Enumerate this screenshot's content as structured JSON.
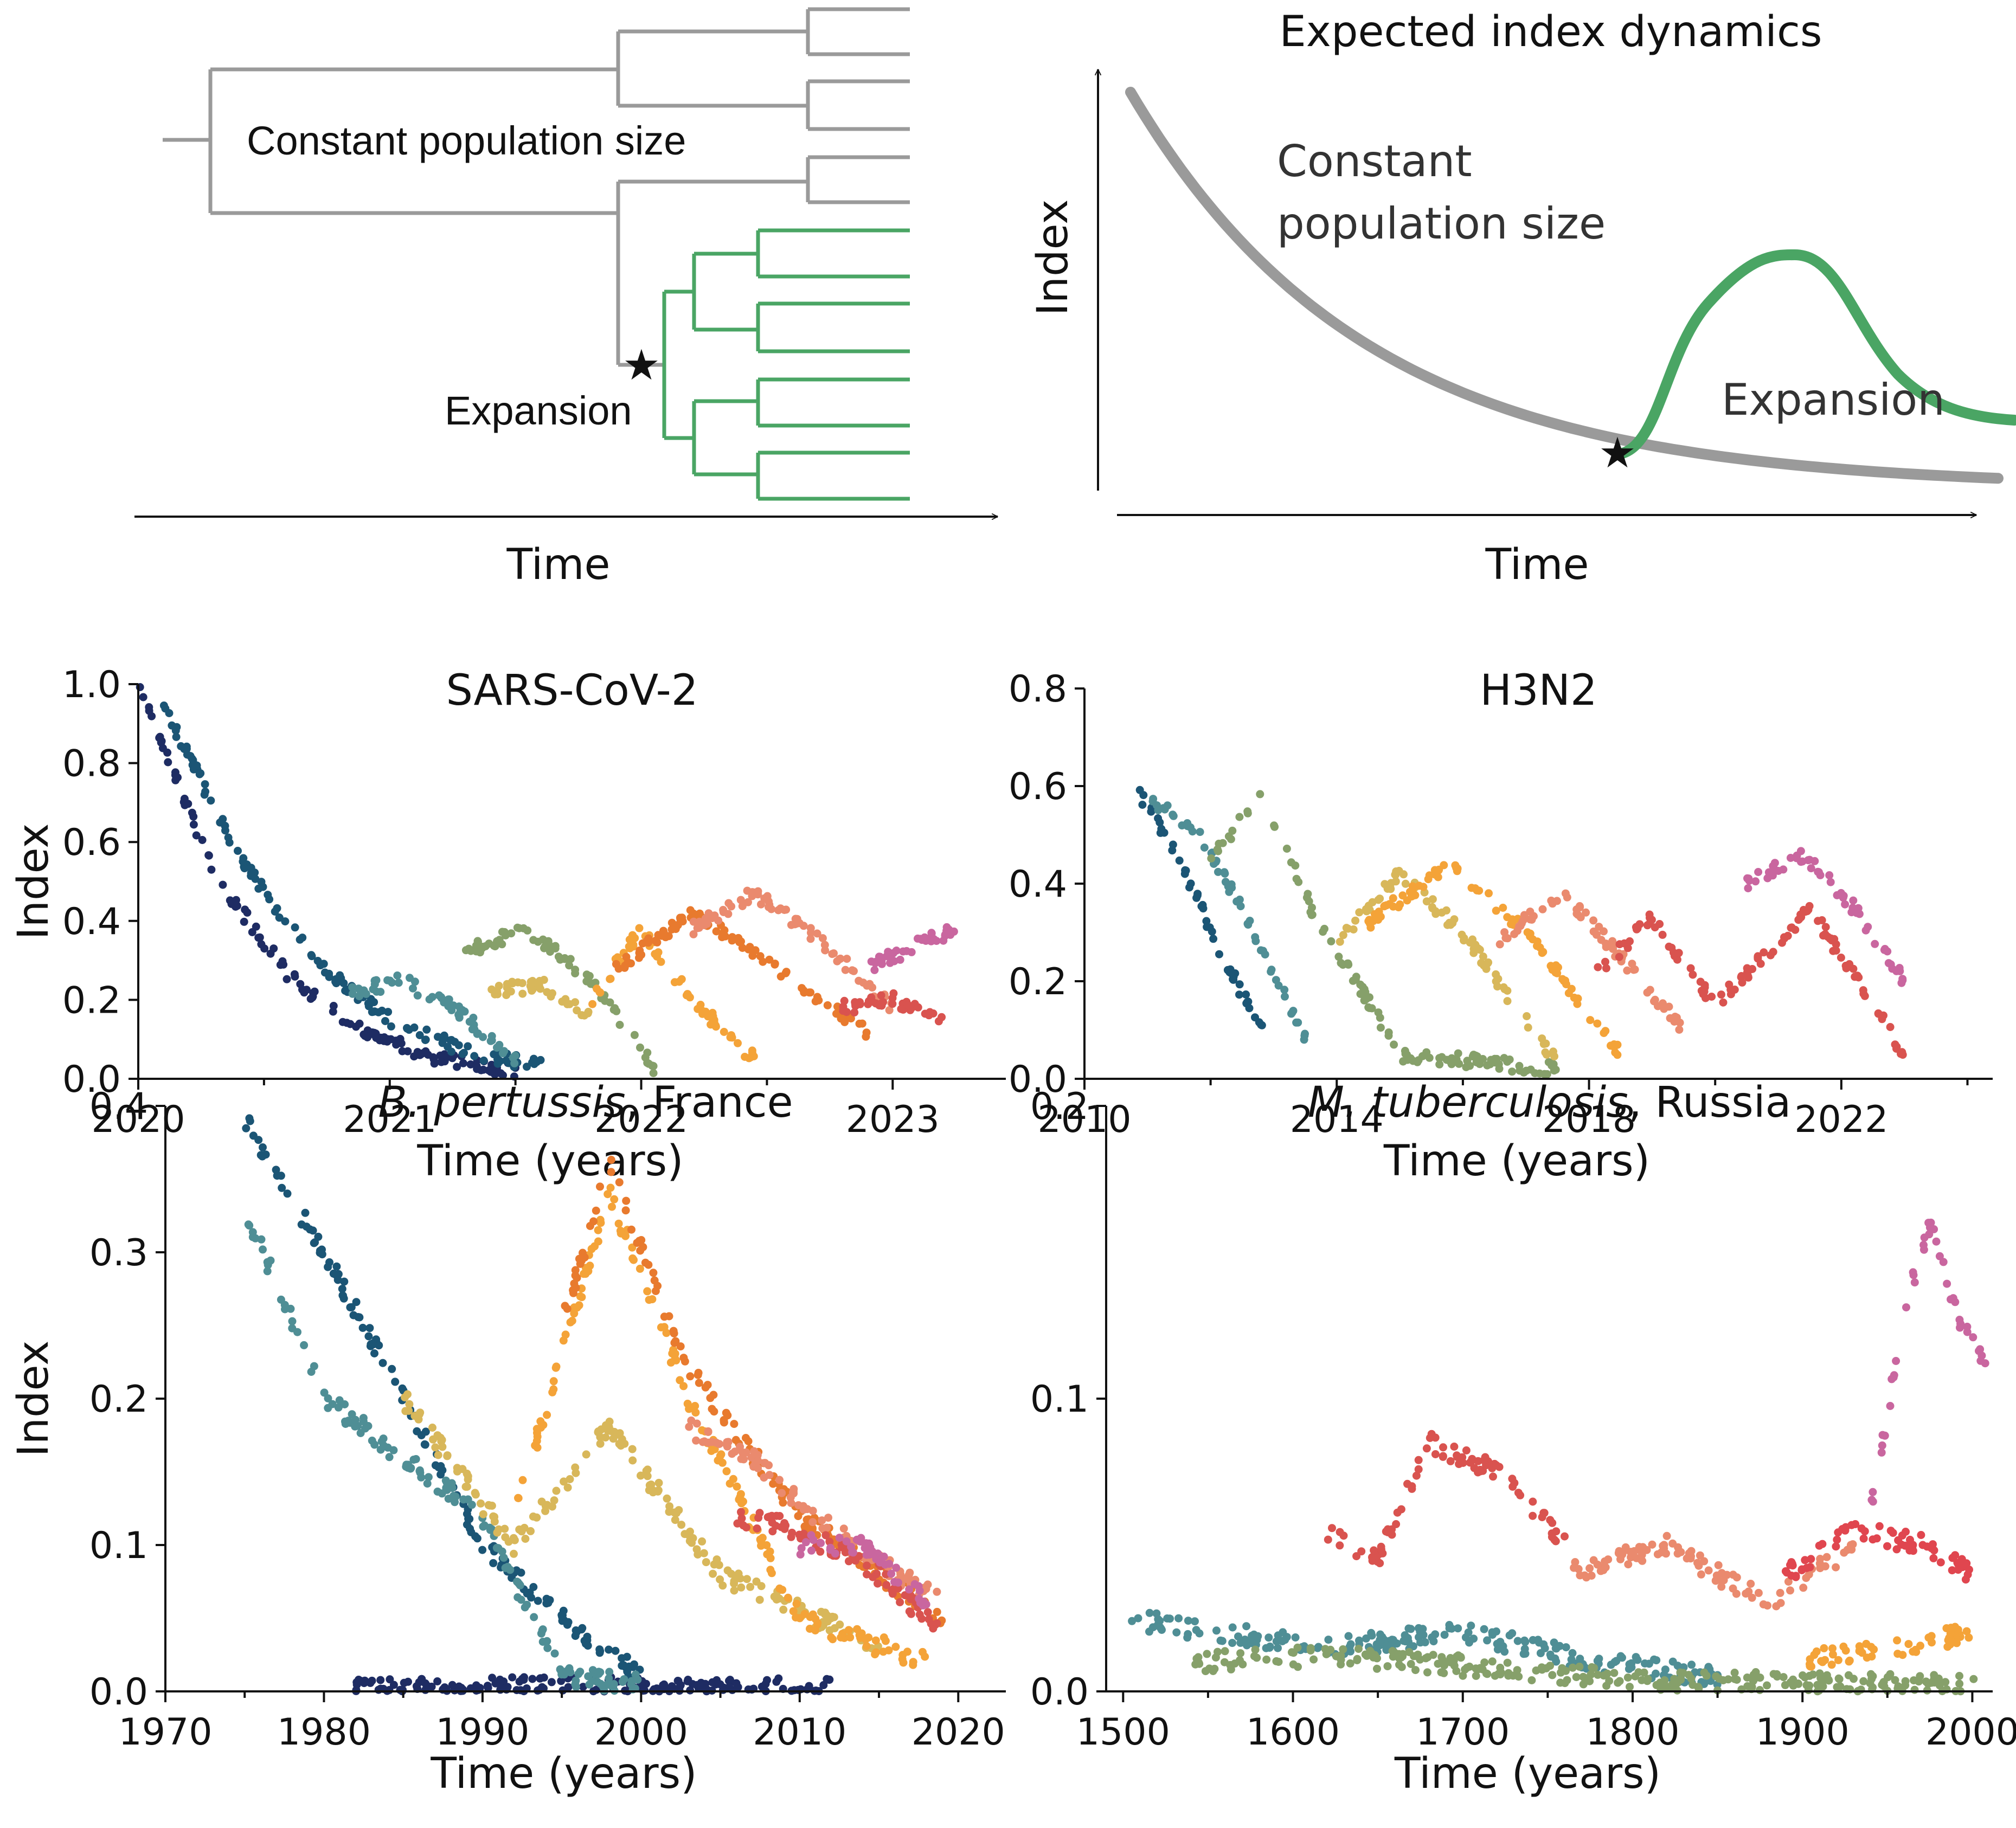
{
  "schematic_tree": {
    "label_constant": "Constant population size",
    "label_expansion": "Expansion",
    "xlabel": "Time",
    "colors": {
      "background_lineage": "#9a9a9a",
      "expansion_lineage": "#4aa564"
    }
  },
  "schematic_dynamics": {
    "title": "Expected index dynamics",
    "ylabel": "Index",
    "xlabel": "Time",
    "label_constant": "Constant population size",
    "label_constant_line1": "Constant",
    "label_constant_line2": "population size",
    "label_expansion": "Expansion",
    "colors": {
      "background_curve": "#9a9a9a",
      "expansion_curve": "#4aa564"
    }
  },
  "chart_data": [
    {
      "type": "scatter",
      "title": "SARS-CoV-2",
      "xlabel": "Time (years)",
      "ylabel": "Index",
      "xlim": [
        2020.0,
        2023.45
      ],
      "ylim": [
        0.0,
        1.0
      ],
      "xticks": [
        2020,
        2021,
        2022,
        2023
      ],
      "yticks": [
        0.0,
        0.2,
        0.4,
        0.6,
        0.8,
        1.0
      ],
      "ytick_labels": [
        "0.0",
        "0.2",
        "0.4",
        "0.6",
        "0.8",
        "1.0"
      ],
      "series": [
        {
          "color": "#1e2c63",
          "x": [
            2020.0,
            2020.3,
            2020.6,
            2020.9,
            2021.2,
            2021.5
          ],
          "y": [
            1.0,
            0.52,
            0.26,
            0.12,
            0.05,
            0.02
          ]
        },
        {
          "color": "#1b5575",
          "x": [
            2020.1,
            2020.4,
            2020.7,
            2021.0,
            2021.3,
            2021.6
          ],
          "y": [
            0.95,
            0.56,
            0.3,
            0.15,
            0.07,
            0.03
          ]
        },
        {
          "color": "#4f8e95",
          "x": [
            2020.85,
            2021.05,
            2021.25,
            2021.5
          ],
          "y": [
            0.22,
            0.25,
            0.18,
            0.05
          ]
        },
        {
          "color": "#86a06a",
          "x": [
            2021.3,
            2021.55,
            2021.8,
            2022.05
          ],
          "y": [
            0.32,
            0.38,
            0.25,
            0.03
          ]
        },
        {
          "color": "#d8b75a",
          "x": [
            2021.4,
            2021.6,
            2021.8
          ],
          "y": [
            0.22,
            0.24,
            0.15
          ]
        },
        {
          "color": "#f4a338",
          "x": [
            2021.8,
            2022.0,
            2022.2,
            2022.45
          ],
          "y": [
            0.2,
            0.38,
            0.2,
            0.05
          ]
        },
        {
          "color": "#e87a2e",
          "x": [
            2021.9,
            2022.2,
            2022.5,
            2022.9
          ],
          "y": [
            0.28,
            0.42,
            0.3,
            0.12
          ]
        },
        {
          "color": "#ea8a6e",
          "x": [
            2022.2,
            2022.45,
            2022.7,
            2023.0
          ],
          "y": [
            0.38,
            0.47,
            0.36,
            0.18
          ]
        },
        {
          "color": "#d9534f",
          "x": [
            2022.8,
            2023.0,
            2023.2
          ],
          "y": [
            0.18,
            0.2,
            0.15
          ]
        },
        {
          "color": "#c9669f",
          "x": [
            2022.9,
            2023.1,
            2023.25
          ],
          "y": [
            0.28,
            0.34,
            0.38
          ]
        }
      ]
    },
    {
      "type": "scatter",
      "title": "H3N2",
      "xlabel": "Time (years)",
      "ylabel": "",
      "xlim": [
        2010.0,
        2024.4
      ],
      "ylim": [
        0.0,
        0.8
      ],
      "xticks": [
        2010,
        2014,
        2018,
        2022
      ],
      "yticks": [
        0.0,
        0.2,
        0.4,
        0.6,
        0.8
      ],
      "ytick_labels": [
        "0.0",
        "0.2",
        "0.4",
        "0.6",
        "0.8"
      ],
      "series": [
        {
          "color": "#1b5575",
          "x": [
            2010.8,
            2011.5,
            2012.2,
            2013.0
          ],
          "y": [
            0.6,
            0.45,
            0.25,
            0.05
          ]
        },
        {
          "color": "#4f8e95",
          "x": [
            2011.0,
            2011.8,
            2012.5,
            2013.5
          ],
          "y": [
            0.58,
            0.5,
            0.35,
            0.08
          ]
        },
        {
          "color": "#86a06a",
          "x": [
            2012.0,
            2012.8,
            2013.6,
            2015.0,
            2017.5
          ],
          "y": [
            0.45,
            0.58,
            0.35,
            0.05,
            0.02
          ]
        },
        {
          "color": "#d8b75a",
          "x": [
            2014.0,
            2015.0,
            2016.0,
            2017.5
          ],
          "y": [
            0.28,
            0.42,
            0.3,
            0.03
          ]
        },
        {
          "color": "#f4a338",
          "x": [
            2014.5,
            2015.8,
            2017.0,
            2018.5
          ],
          "y": [
            0.32,
            0.44,
            0.3,
            0.05
          ]
        },
        {
          "color": "#ea8a6e",
          "x": [
            2016.5,
            2017.6,
            2018.5,
            2019.5
          ],
          "y": [
            0.28,
            0.38,
            0.25,
            0.1
          ]
        },
        {
          "color": "#d9534f",
          "x": [
            2018.0,
            2019.0,
            2020.0,
            2021.5,
            2023.0
          ],
          "y": [
            0.2,
            0.33,
            0.15,
            0.35,
            0.05
          ]
        },
        {
          "color": "#c9669f",
          "x": [
            2020.5,
            2021.4,
            2022.2,
            2023.0
          ],
          "y": [
            0.4,
            0.46,
            0.35,
            0.2
          ]
        }
      ]
    },
    {
      "type": "scatter",
      "title": "B. pertussis, France",
      "title_italic": "B. pertussis",
      "title_rest": ", France",
      "xlabel": "Time (years)",
      "ylabel": "Index",
      "xlim": [
        1970,
        2023
      ],
      "ylim": [
        0.0,
        0.4
      ],
      "xticks": [
        1970,
        1980,
        1990,
        2000,
        2010,
        2020
      ],
      "yticks": [
        0.0,
        0.1,
        0.2,
        0.3,
        0.4
      ],
      "ytick_labels": [
        "0.0",
        "0.1",
        "0.2",
        "0.3",
        "0.4"
      ],
      "series": [
        {
          "color": "#1e2c63",
          "x": [
            1982,
            1998,
            2005,
            2012
          ],
          "y": [
            0.002,
            0.003,
            0.002,
            0.002
          ]
        },
        {
          "color": "#1b5575",
          "x": [
            1975,
            1980,
            1984,
            1990,
            1995,
            2000
          ],
          "y": [
            0.39,
            0.3,
            0.22,
            0.1,
            0.05,
            0.01
          ]
        },
        {
          "color": "#4f8e95",
          "x": [
            1975,
            1980,
            1990,
            1995,
            2000
          ],
          "y": [
            0.33,
            0.2,
            0.12,
            0.01,
            0.005
          ]
        },
        {
          "color": "#d8b75a",
          "x": [
            1985,
            1992,
            1998,
            2005,
            2015
          ],
          "y": [
            0.2,
            0.1,
            0.18,
            0.08,
            0.03
          ]
        },
        {
          "color": "#f4a338",
          "x": [
            1992,
            1998,
            2003,
            2010,
            2018
          ],
          "y": [
            0.12,
            0.34,
            0.2,
            0.05,
            0.02
          ]
        },
        {
          "color": "#e87a2e",
          "x": [
            1995,
            1998,
            2003,
            2010,
            2019
          ],
          "y": [
            0.25,
            0.36,
            0.22,
            0.12,
            0.05
          ]
        },
        {
          "color": "#ea8a6e",
          "x": [
            2003,
            2007,
            2012,
            2019
          ],
          "y": [
            0.18,
            0.16,
            0.11,
            0.06
          ]
        },
        {
          "color": "#d9534f",
          "x": [
            2006,
            2010,
            2015,
            2019
          ],
          "y": [
            0.12,
            0.11,
            0.08,
            0.04
          ]
        },
        {
          "color": "#c9669f",
          "x": [
            2010,
            2014,
            2018
          ],
          "y": [
            0.1,
            0.1,
            0.06
          ]
        }
      ]
    },
    {
      "type": "scatter",
      "title": "M. tuberculosis, Russia",
      "title_italic": "M. tuberculosis",
      "title_rest": ", Russia",
      "xlabel": "Time (years)",
      "ylabel": "",
      "xlim": [
        1490,
        2012
      ],
      "ylim": [
        0.0,
        0.2
      ],
      "xticks": [
        1500,
        1600,
        1700,
        1800,
        1900,
        2000
      ],
      "yticks": [
        0.0,
        0.1,
        0.2
      ],
      "ytick_labels": [
        "0.0",
        "0.1",
        "0.2"
      ],
      "series": [
        {
          "color": "#4f8e95",
          "x": [
            1500,
            1560,
            1620,
            1700,
            1780,
            1850
          ],
          "y": [
            0.025,
            0.02,
            0.015,
            0.02,
            0.01,
            0.005
          ]
        },
        {
          "color": "#86a06a",
          "x": [
            1540,
            1620,
            1720,
            1800,
            1900,
            2005
          ],
          "y": [
            0.01,
            0.012,
            0.008,
            0.004,
            0.003,
            0.002
          ]
        },
        {
          "color": "#d9534f",
          "x": [
            1620,
            1650,
            1680,
            1720,
            1760
          ],
          "y": [
            0.055,
            0.045,
            0.085,
            0.075,
            0.05
          ]
        },
        {
          "color": "#ea8a6e",
          "x": [
            1760,
            1820,
            1880,
            1930
          ],
          "y": [
            0.04,
            0.05,
            0.03,
            0.05
          ]
        },
        {
          "color": "#e0464f",
          "x": [
            1890,
            1930,
            1970,
            2000
          ],
          "y": [
            0.04,
            0.055,
            0.05,
            0.04
          ]
        },
        {
          "color": "#f4a338",
          "x": [
            1900,
            1950,
            2000
          ],
          "y": [
            0.01,
            0.015,
            0.02
          ]
        },
        {
          "color": "#c9669f",
          "x": [
            1940,
            1960,
            1975,
            1990,
            2008
          ],
          "y": [
            0.06,
            0.13,
            0.16,
            0.13,
            0.11
          ]
        }
      ]
    }
  ]
}
